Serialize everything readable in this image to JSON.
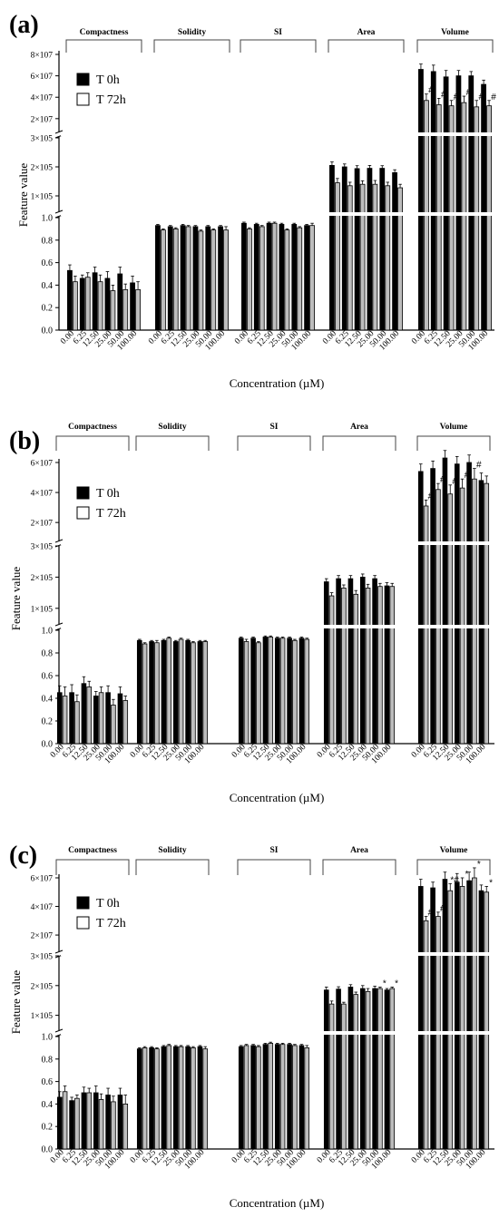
{
  "chart_data": [
    {
      "type": "bar",
      "panel_label": "(a)",
      "xlabel": "Concentration (µM)",
      "ylabel": "Feature value",
      "legend": [
        {
          "name": "T 0h",
          "color": "#000000"
        },
        {
          "name": "T 72h",
          "color": "#ffffff"
        }
      ],
      "legend_position": "top-left",
      "categories": [
        "0.00",
        "6.25",
        "12.50",
        "25.00",
        "50.00",
        "100.00"
      ],
      "groups": [
        {
          "name": "Compactness",
          "unit": "1",
          "t0": [
            0.53,
            0.46,
            0.51,
            0.46,
            0.5,
            0.42
          ],
          "t0_err": [
            0.05,
            0.03,
            0.05,
            0.06,
            0.06,
            0.06
          ],
          "t72": [
            0.43,
            0.47,
            0.43,
            0.35,
            0.36,
            0.36
          ],
          "t72_err": [
            0.05,
            0.04,
            0.06,
            0.05,
            0.05,
            0.07
          ],
          "marks": [
            "",
            "",
            "",
            "",
            "",
            ""
          ]
        },
        {
          "name": "Solidity",
          "unit": "1",
          "t0": [
            0.93,
            0.92,
            0.93,
            0.92,
            0.92,
            0.92
          ],
          "t0_err": [
            0.01,
            0.01,
            0.01,
            0.01,
            0.01,
            0.01
          ],
          "t72": [
            0.89,
            0.9,
            0.92,
            0.88,
            0.89,
            0.89
          ],
          "t72_err": [
            0.01,
            0.01,
            0.01,
            0.01,
            0.01,
            0.03
          ],
          "marks": [
            "",
            "",
            "",
            "",
            "",
            ""
          ]
        },
        {
          "name": "SI",
          "unit": "1",
          "t0": [
            0.95,
            0.94,
            0.95,
            0.94,
            0.94,
            0.93
          ],
          "t0_err": [
            0.01,
            0.01,
            0.01,
            0.01,
            0.01,
            0.01
          ],
          "t72": [
            0.9,
            0.92,
            0.95,
            0.89,
            0.91,
            0.93
          ],
          "t72_err": [
            0.01,
            0.01,
            0.01,
            0.01,
            0.01,
            0.02
          ],
          "marks": [
            "",
            "",
            "",
            "",
            "",
            ""
          ]
        },
        {
          "name": "Area",
          "unit": "1e5",
          "t0": [
            2.05,
            2.0,
            1.94,
            1.95,
            1.95,
            1.8
          ],
          "t0_err": [
            0.12,
            0.1,
            0.1,
            0.1,
            0.09,
            0.1
          ],
          "t72": [
            1.45,
            1.35,
            1.4,
            1.4,
            1.35,
            1.28
          ],
          "t72_err": [
            0.15,
            0.12,
            0.12,
            0.13,
            0.12,
            0.12
          ],
          "marks": [
            "",
            "",
            "",
            "",
            "",
            ""
          ]
        },
        {
          "name": "Volume",
          "unit": "1e7",
          "t0": [
            6.6,
            6.4,
            5.9,
            6.0,
            6.0,
            5.2
          ],
          "t0_err": [
            0.5,
            0.6,
            0.6,
            0.5,
            0.4,
            0.4
          ],
          "t72": [
            3.7,
            3.3,
            3.2,
            3.5,
            3.1,
            3.2
          ],
          "t72_err": [
            0.6,
            0.6,
            0.5,
            0.6,
            0.6,
            0.5
          ],
          "marks": [
            "#",
            "#",
            "#",
            "#",
            "#",
            "#"
          ]
        }
      ],
      "y_axis": {
        "segments": [
          {
            "ticks": [
              "0.0",
              "0.2",
              "0.4",
              "0.6",
              "0.8",
              "1.0"
            ],
            "values": [
              0,
              0.2,
              0.4,
              0.6,
              0.8,
              1.0
            ]
          },
          {
            "ticks": [
              "1×10^5",
              "2×10^5",
              "3×10^5"
            ],
            "values": [
              1,
              2,
              3
            ]
          },
          {
            "ticks": [
              "2×10^7",
              "4×10^7",
              "6×10^7",
              "8×10^7"
            ],
            "values": [
              2,
              4,
              6,
              8
            ]
          }
        ]
      }
    },
    {
      "type": "bar",
      "panel_label": "(b)",
      "xlabel": "Concentration (µM)",
      "ylabel": "Feature value",
      "legend": [
        {
          "name": "T 0h",
          "color": "#000000"
        },
        {
          "name": "T 72h",
          "color": "#ffffff"
        }
      ],
      "legend_position": "top-left",
      "categories": [
        "0.00",
        "6.25",
        "12.50",
        "25.00",
        "50.00",
        "100.00"
      ],
      "groups": [
        {
          "name": "Compactness",
          "unit": "1",
          "t0": [
            0.45,
            0.45,
            0.53,
            0.42,
            0.45,
            0.44
          ],
          "t0_err": [
            0.06,
            0.07,
            0.06,
            0.04,
            0.06,
            0.06
          ],
          "t72": [
            0.42,
            0.37,
            0.5,
            0.45,
            0.34,
            0.38
          ],
          "t72_err": [
            0.08,
            0.06,
            0.05,
            0.05,
            0.05,
            0.04
          ],
          "marks": [
            "",
            "",
            "",
            "",
            "",
            ""
          ]
        },
        {
          "name": "Solidity",
          "unit": "1",
          "t0": [
            0.91,
            0.9,
            0.91,
            0.9,
            0.91,
            0.9
          ],
          "t0_err": [
            0.01,
            0.01,
            0.01,
            0.01,
            0.01,
            0.01
          ],
          "t72": [
            0.88,
            0.89,
            0.93,
            0.92,
            0.89,
            0.9
          ],
          "t72_err": [
            0.01,
            0.02,
            0.01,
            0.01,
            0.01,
            0.01
          ],
          "marks": [
            "",
            "",
            "",
            "",
            "",
            ""
          ]
        },
        {
          "name": "SI",
          "unit": "1",
          "t0": [
            0.93,
            0.93,
            0.94,
            0.93,
            0.93,
            0.93
          ],
          "t0_err": [
            0.01,
            0.01,
            0.01,
            0.01,
            0.01,
            0.01
          ],
          "t72": [
            0.9,
            0.89,
            0.94,
            0.93,
            0.91,
            0.92
          ],
          "t72_err": [
            0.02,
            0.01,
            0.01,
            0.01,
            0.01,
            0.01
          ],
          "marks": [
            "",
            "",
            "",
            "",
            "",
            ""
          ]
        },
        {
          "name": "Area",
          "unit": "1e5",
          "t0": [
            1.85,
            1.95,
            1.95,
            2.0,
            1.95,
            1.72
          ],
          "t0_err": [
            0.1,
            0.1,
            0.1,
            0.1,
            0.1,
            0.1
          ],
          "t72": [
            1.4,
            1.65,
            1.45,
            1.65,
            1.7,
            1.7
          ],
          "t72_err": [
            0.1,
            0.1,
            0.12,
            0.12,
            0.1,
            0.1
          ],
          "marks": [
            "",
            "",
            "",
            "",
            "",
            ""
          ]
        },
        {
          "name": "Volume",
          "unit": "1e7",
          "t0": [
            5.4,
            5.6,
            6.3,
            5.9,
            6.0,
            4.8
          ],
          "t0_err": [
            0.5,
            0.5,
            0.5,
            0.5,
            0.5,
            0.5
          ],
          "t72": [
            3.1,
            4.2,
            3.9,
            4.3,
            4.9,
            4.6
          ],
          "t72_err": [
            0.4,
            0.4,
            0.6,
            0.6,
            0.7,
            0.5
          ],
          "marks": [
            "#",
            "#",
            "#",
            "#",
            "#",
            ""
          ]
        }
      ],
      "y_axis": {
        "segments": [
          {
            "ticks": [
              "0.0",
              "0.2",
              "0.4",
              "0.6",
              "0.8",
              "1.0"
            ],
            "values": [
              0,
              0.2,
              0.4,
              0.6,
              0.8,
              1.0
            ]
          },
          {
            "ticks": [
              "1×10^5",
              "2×10^5",
              "3×10^5"
            ],
            "values": [
              1,
              2,
              3
            ]
          },
          {
            "ticks": [
              "2×10^7",
              "4×10^7",
              "6×10^7"
            ],
            "values": [
              2,
              4,
              6
            ]
          }
        ]
      }
    },
    {
      "type": "bar",
      "panel_label": "(c)",
      "xlabel": "Concentration (µM)",
      "ylabel": "Feature value",
      "legend": [
        {
          "name": "T 0h",
          "color": "#000000"
        },
        {
          "name": "T 72h",
          "color": "#ffffff"
        }
      ],
      "legend_position": "top-left",
      "categories": [
        "0.00",
        "6.25",
        "12.50",
        "25.00",
        "50.00",
        "100.00"
      ],
      "groups": [
        {
          "name": "Compactness",
          "unit": "1",
          "t0": [
            0.46,
            0.43,
            0.5,
            0.5,
            0.48,
            0.48
          ],
          "t0_err": [
            0.05,
            0.03,
            0.05,
            0.06,
            0.06,
            0.06
          ],
          "t72": [
            0.51,
            0.45,
            0.5,
            0.44,
            0.42,
            0.4
          ],
          "t72_err": [
            0.05,
            0.03,
            0.04,
            0.05,
            0.05,
            0.08
          ],
          "marks": [
            "",
            "",
            "",
            "",
            "",
            ""
          ]
        },
        {
          "name": "Solidity",
          "unit": "1",
          "t0": [
            0.89,
            0.9,
            0.91,
            0.91,
            0.91,
            0.91
          ],
          "t0_err": [
            0.01,
            0.01,
            0.01,
            0.01,
            0.01,
            0.01
          ],
          "t72": [
            0.9,
            0.89,
            0.92,
            0.91,
            0.9,
            0.89
          ],
          "t72_err": [
            0.01,
            0.01,
            0.01,
            0.01,
            0.01,
            0.02
          ],
          "marks": [
            "",
            "",
            "",
            "",
            "",
            ""
          ]
        },
        {
          "name": "SI",
          "unit": "1",
          "t0": [
            0.91,
            0.92,
            0.93,
            0.93,
            0.93,
            0.92
          ],
          "t0_err": [
            0.01,
            0.01,
            0.01,
            0.01,
            0.01,
            0.01
          ],
          "t72": [
            0.92,
            0.91,
            0.94,
            0.93,
            0.92,
            0.9
          ],
          "t72_err": [
            0.01,
            0.01,
            0.01,
            0.01,
            0.01,
            0.02
          ],
          "marks": [
            "",
            "",
            "",
            "",
            "",
            ""
          ]
        },
        {
          "name": "Area",
          "unit": "1e5",
          "t0": [
            1.85,
            1.88,
            1.95,
            1.9,
            1.9,
            1.85
          ],
          "t0_err": [
            0.1,
            0.08,
            0.08,
            0.1,
            0.08,
            0.05
          ],
          "t72": [
            1.38,
            1.38,
            1.7,
            1.8,
            1.9,
            1.9
          ],
          "t72_err": [
            0.1,
            0.06,
            0.08,
            0.1,
            0.05,
            0.05
          ],
          "marks": [
            "",
            "",
            "",
            "",
            "*",
            "*"
          ]
        },
        {
          "name": "Volume",
          "unit": "1e7",
          "t0": [
            5.4,
            5.3,
            5.9,
            5.7,
            5.8,
            5.1
          ],
          "t0_err": [
            0.5,
            0.4,
            0.5,
            0.6,
            0.6,
            0.4
          ],
          "t72": [
            3.0,
            3.3,
            5.1,
            5.4,
            6.0,
            5.0
          ],
          "t72_err": [
            0.3,
            0.3,
            0.5,
            0.6,
            0.7,
            0.4
          ],
          "marks": [
            "#",
            "#",
            "*#",
            "*",
            "*",
            "*"
          ]
        }
      ],
      "y_axis": {
        "segments": [
          {
            "ticks": [
              "0.0",
              "0.2",
              "0.4",
              "0.6",
              "0.8",
              "1.0"
            ],
            "values": [
              0,
              0.2,
              0.4,
              0.6,
              0.8,
              1.0
            ]
          },
          {
            "ticks": [
              "1×10^5",
              "2×10^5",
              "3×10^5"
            ],
            "values": [
              1,
              2,
              3
            ]
          },
          {
            "ticks": [
              "2×10^7",
              "4×10^7",
              "6×10^7"
            ],
            "values": [
              2,
              4,
              6
            ]
          }
        ]
      }
    }
  ]
}
